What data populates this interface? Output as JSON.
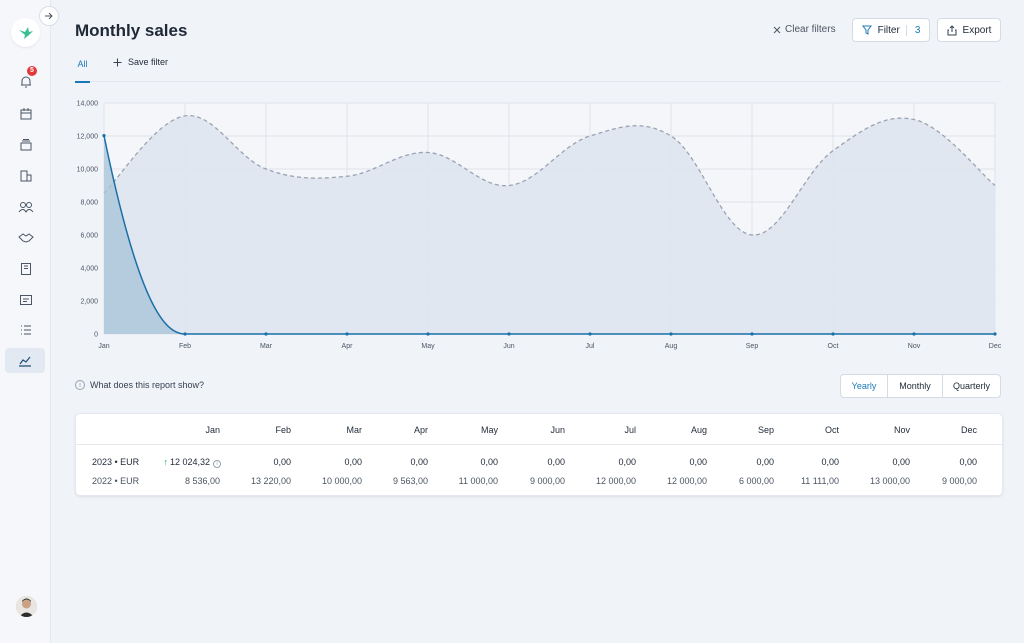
{
  "header": {
    "title": "Monthly sales",
    "clear_filters": "Clear filters",
    "filter_label": "Filter",
    "filter_count": "3",
    "export_label": "Export"
  },
  "sidebar": {
    "notification_count": "5",
    "items": [
      {
        "icon": "bell-icon"
      },
      {
        "icon": "calendar-icon"
      },
      {
        "icon": "cards-icon"
      },
      {
        "icon": "buildings-icon"
      },
      {
        "icon": "users-icon"
      },
      {
        "icon": "handshake-icon"
      },
      {
        "icon": "book-icon"
      },
      {
        "icon": "message-icon"
      },
      {
        "icon": "list-icon"
      },
      {
        "icon": "chart-line-icon",
        "active": true
      }
    ]
  },
  "tabs": {
    "all": "All",
    "save_filter": "Save filter"
  },
  "chart_data": {
    "type": "area",
    "categories": [
      "Jan",
      "Feb",
      "Mar",
      "Apr",
      "May",
      "Jun",
      "Jul",
      "Aug",
      "Sep",
      "Oct",
      "Nov",
      "Dec"
    ],
    "y_ticks": [
      "0",
      "2,000",
      "4,000",
      "6,000",
      "8,000",
      "10,000",
      "12,000",
      "14,000"
    ],
    "ylim": [
      0,
      14000
    ],
    "grid": true,
    "series": [
      {
        "name": "2023",
        "values": [
          12024.32,
          0,
          0,
          0,
          0,
          0,
          0,
          0,
          0,
          0,
          0,
          0
        ],
        "color": "#1b6fa8",
        "style": "solid"
      },
      {
        "name": "2022",
        "values": [
          8536,
          13220,
          10000,
          9563,
          11000,
          9000,
          12000,
          12000,
          6000,
          11111,
          13000,
          9000
        ],
        "color": "#9aa3b2",
        "style": "dashed"
      }
    ]
  },
  "report": {
    "question": "What does this report show?",
    "periods": [
      "Yearly",
      "Monthly",
      "Quarterly"
    ],
    "active_period": "Yearly"
  },
  "table": {
    "months": [
      "Jan",
      "Feb",
      "Mar",
      "Apr",
      "May",
      "Jun",
      "Jul",
      "Aug",
      "Sep",
      "Oct",
      "Nov",
      "Dec"
    ],
    "rows": [
      {
        "label": "2023 • EUR",
        "values": [
          "12 024,32",
          "0,00",
          "0,00",
          "0,00",
          "0,00",
          "0,00",
          "0,00",
          "0,00",
          "0,00",
          "0,00",
          "0,00",
          "0,00"
        ]
      },
      {
        "label": "2022 • EUR",
        "values": [
          "8 536,00",
          "13 220,00",
          "10 000,00",
          "9 563,00",
          "11 000,00",
          "9 000,00",
          "12 000,00",
          "12 000,00",
          "6 000,00",
          "11 111,00",
          "13 000,00",
          "9 000,00"
        ]
      }
    ]
  }
}
